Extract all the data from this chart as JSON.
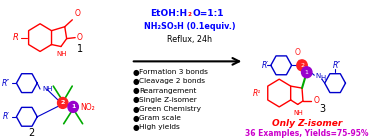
{
  "background": "#ffffff",
  "isatin_color": "#ff0000",
  "enamine_color": "#0000cc",
  "product_red_color": "#ff0000",
  "product_blue_color": "#0000cc",
  "green_color": "#00aa00",
  "purple_color": "#9900cc",
  "red_circle_color": "#ff2222",
  "cond_blue": "#0000ff",
  "cond_red": "#ff0000",
  "cond_black": "#000000",
  "nitro_red": "#ff0000",
  "bullet_items": [
    "Formation 3 bonds",
    "Cleavage 2 bonds",
    "Rearrangement",
    "Single Z-isomer",
    "Green Chemistry",
    "Gram scale",
    "High yields"
  ],
  "bottom_text1": "Only Z-isomer",
  "bottom_text1_color": "#ff0000",
  "bottom_text2": "36 Examples, Yields=75-95%",
  "bottom_text2_color": "#cc00cc"
}
